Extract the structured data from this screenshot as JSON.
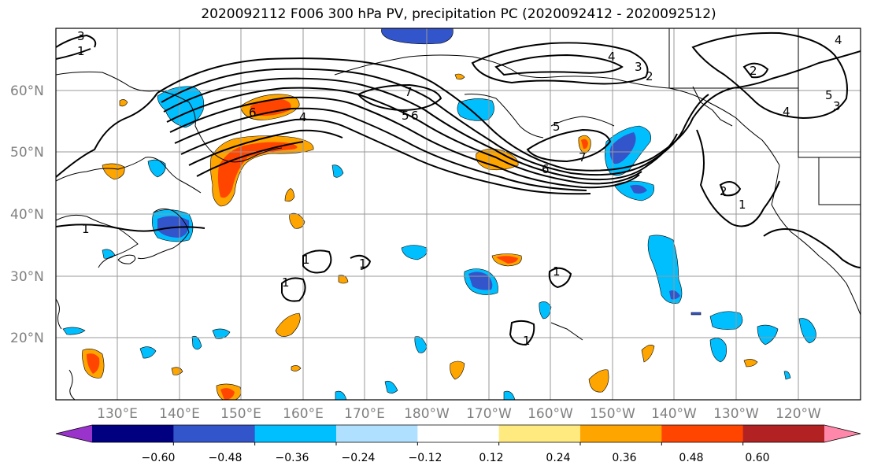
{
  "title": "2020092112 F006 300 hPa PV, precipitation PC (2020092412 - 2020092512)",
  "lat_labels": [
    "60°N",
    "50°N",
    "40°N",
    "30°N",
    "20°N"
  ],
  "lon_labels": [
    "130°E",
    "140°E",
    "150°E",
    "160°E",
    "170°E",
    "180°W",
    "170°W",
    "160°W",
    "150°W",
    "140°W",
    "130°W",
    "120°W"
  ],
  "colorbar": {
    "ticks": [
      "−0.60",
      "−0.48",
      "−0.36",
      "−0.24",
      "−0.12",
      "0.12",
      "0.24",
      "0.36",
      "0.48",
      "0.60"
    ],
    "colors": [
      "#9933cc",
      "#000080",
      "#3355cc",
      "#00bfff",
      "#b0e0ff",
      "#ffffff",
      "#ffea80",
      "#ffa500",
      "#ff4500",
      "#b22222",
      "#ff88aa"
    ]
  },
  "contour_labels": [
    "1",
    "3",
    "4",
    "5",
    "6",
    "7",
    "2",
    "4",
    "5",
    "6",
    "7",
    "3",
    "2",
    "4",
    "5",
    "3",
    "4",
    "2",
    "1",
    "1",
    "1",
    "1",
    "1",
    "1",
    "1",
    "6"
  ]
}
